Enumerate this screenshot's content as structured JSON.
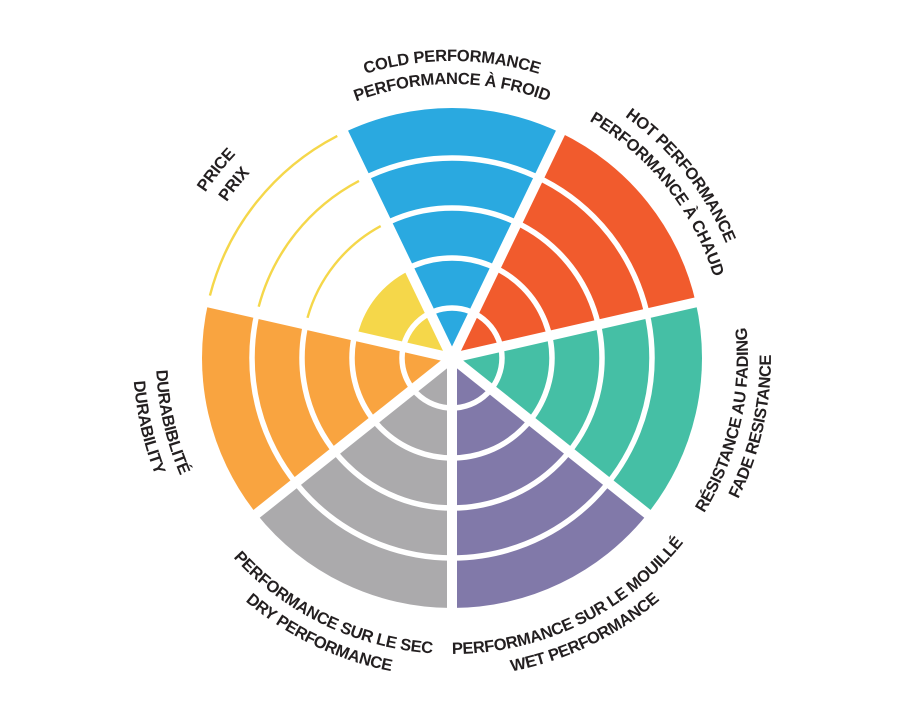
{
  "page": {
    "background_color": "#FFFFFF"
  },
  "chart_data": {
    "type": "pie",
    "subtype": "polar-rose-rating-wheel",
    "description": "Seven-sector product rating wheel, each sector filled in concentric rings out of 5",
    "rings": 5,
    "rating_scale_min": 0,
    "rating_scale_max": 5,
    "direction": "clockwise",
    "start_angle_deg": -90,
    "grid": "white concentric ring dividers and white radial sector dividers",
    "legend_position": "none",
    "text_color": "#231F20",
    "divider_color": "#FFFFFF",
    "sectors": [
      {
        "id": "cold-performance",
        "label_en": "COLD PERFORMANCE",
        "label_fr": "PERFORMANCE À FROID",
        "color": "#2AA9E0",
        "rating": 5
      },
      {
        "id": "hot-performance",
        "label_en": "HOT PERFORMANCE",
        "label_fr": "PERFORMANCE À CHAUD",
        "color": "#F15B2D",
        "rating": 5
      },
      {
        "id": "fade-resistance",
        "label_en": "FADE RESISTANCE",
        "label_fr": "RÉSISTANCE AU FADING",
        "color": "#45BFA5",
        "rating": 5
      },
      {
        "id": "wet-performance",
        "label_en": "WET PERFORMANCE",
        "label_fr": "PERFORMANCE SUR LE MOUILLÉ",
        "color": "#8179A9",
        "rating": 5
      },
      {
        "id": "dry-performance",
        "label_en": "DRY PERFORMANCE",
        "label_fr": "PERFORMANCE SUR LE SEC",
        "color": "#ABAAAC",
        "rating": 5
      },
      {
        "id": "durability",
        "label_en": "DURABILITY",
        "label_fr": "DURABIBLITÉ",
        "color": "#F9A440",
        "rating": 5
      },
      {
        "id": "price",
        "label_en": "PRICE",
        "label_fr": "PRIX",
        "color": "#F5D74A",
        "rating": 2
      }
    ]
  }
}
